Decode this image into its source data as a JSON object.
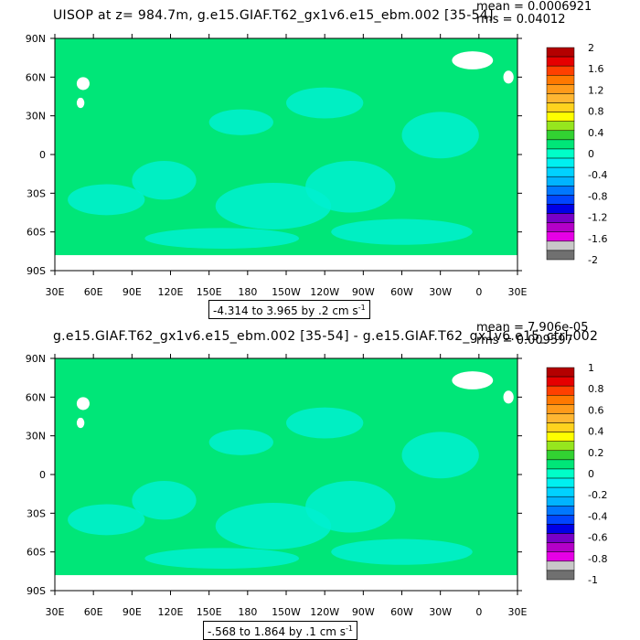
{
  "panels": [
    {
      "title": "UISOP at z= 984.7m, g.e15.GIAF.T62_gx1v6.e15_ebm.002 [35-54]",
      "stat_mean": "mean = 0.0006921",
      "stat_rms": "rms = 0.04012",
      "range_text": "-4.314 to 3.965 by .2 cm s",
      "range_sup": "-1"
    },
    {
      "title": "g.e15.GIAF.T62_gx1v6.e15_ebm.002 [35-54] - g.e15.GIAF.T62_gx1v6.e15_ctrl.002",
      "stat_mean": "mean = 7.906e-05",
      "stat_rms": "rms = 0.009597",
      "range_text": "-.568 to 1.864 by .1 cm s",
      "range_sup": "-1"
    }
  ],
  "chart_data": [
    {
      "type": "heatmap",
      "title": "UISOP at z= 984.7m, g.e15.GIAF.T62_gx1v6.e15_ebm.002 [35-54]",
      "x_ticks": [
        "30E",
        "60E",
        "90E",
        "120E",
        "150E",
        "180",
        "150W",
        "120W",
        "90W",
        "60W",
        "30W",
        "0",
        "30E"
      ],
      "y_ticks": [
        "90N",
        "60N",
        "30N",
        "0",
        "30S",
        "60S",
        "90S"
      ],
      "xlim": [
        30,
        390
      ],
      "ylim": [
        -90,
        90
      ],
      "colorbar_labels": [
        "2",
        "1.6",
        "1.2",
        "0.8",
        "0.4",
        "0",
        "-0.4",
        "-0.8",
        "-1.2",
        "-1.6",
        "-2"
      ],
      "colorbar_colors": [
        "#b40000",
        "#e60000",
        "#ff4000",
        "#ff7800",
        "#ff9a1a",
        "#ffb632",
        "#ffd21e",
        "#ffff00",
        "#96e61e",
        "#32d232",
        "#00e678",
        "#00ffc8",
        "#00f0f0",
        "#00d2ff",
        "#00b4ff",
        "#0078ff",
        "#0046ff",
        "#0000e6",
        "#7800c8",
        "#b400c8",
        "#e600e6",
        "#c8c8c8",
        "#707070"
      ],
      "dominant_color": "#00e678",
      "secondary_color": "#00f0d0",
      "land_color": "#ffffff",
      "range_text": "-4.314 to 3.965 by .2 cm s-1"
    },
    {
      "type": "heatmap",
      "title": "g.e15.GIAF.T62_gx1v6.e15_ebm.002 [35-54] - g.e15.GIAF.T62_gx1v6.e15_ctrl.002",
      "x_ticks": [
        "30E",
        "60E",
        "90E",
        "120E",
        "150E",
        "180",
        "150W",
        "120W",
        "90W",
        "60W",
        "30W",
        "0",
        "30E"
      ],
      "y_ticks": [
        "90N",
        "60N",
        "30N",
        "0",
        "30S",
        "60S",
        "90S"
      ],
      "xlim": [
        30,
        390
      ],
      "ylim": [
        -90,
        90
      ],
      "colorbar_labels": [
        "1",
        "0.8",
        "0.6",
        "0.4",
        "0.2",
        "0",
        "-0.2",
        "-0.4",
        "-0.6",
        "-0.8",
        "-1"
      ],
      "colorbar_colors": [
        "#b40000",
        "#e60000",
        "#ff4000",
        "#ff7800",
        "#ff9a1a",
        "#ffb632",
        "#ffd21e",
        "#ffff00",
        "#96e61e",
        "#32d232",
        "#00e678",
        "#00ffc8",
        "#00f0f0",
        "#00d2ff",
        "#00b4ff",
        "#0078ff",
        "#0046ff",
        "#0000e6",
        "#7800c8",
        "#b400c8",
        "#e600e6",
        "#c8c8c8",
        "#707070"
      ],
      "dominant_color": "#00e678",
      "secondary_color": "#00f0d0",
      "land_color": "#ffffff",
      "range_text": "-.568 to 1.864 by .1 cm s-1"
    }
  ]
}
